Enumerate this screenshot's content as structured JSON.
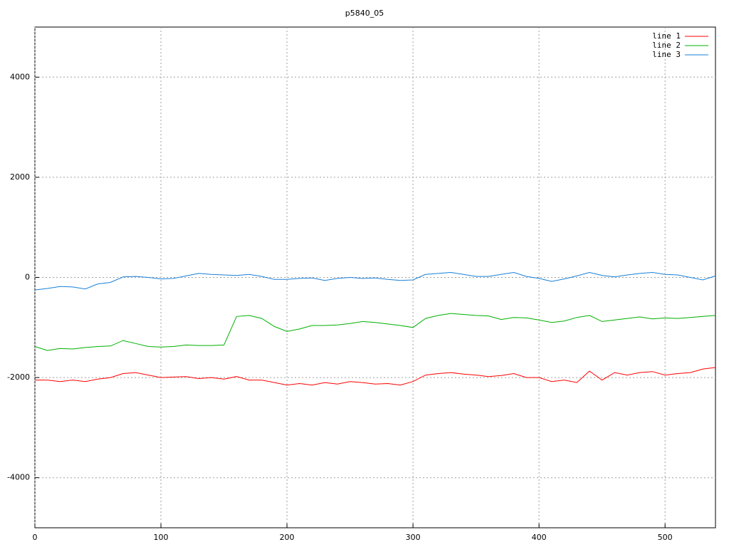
{
  "chart_data": {
    "type": "line",
    "title": "p5840_05",
    "x": [
      0,
      10,
      20,
      30,
      40,
      50,
      60,
      70,
      80,
      90,
      100,
      110,
      120,
      130,
      140,
      150,
      160,
      170,
      180,
      190,
      200,
      210,
      220,
      230,
      240,
      250,
      260,
      270,
      280,
      290,
      300,
      310,
      320,
      330,
      340,
      350,
      360,
      370,
      380,
      390,
      400,
      410,
      420,
      430,
      440,
      450,
      460,
      470,
      480,
      490,
      500,
      510,
      520,
      530,
      540
    ],
    "series": [
      {
        "name": "line 1",
        "color": "#ff0000",
        "values": [
          -2050,
          -2050,
          -2080,
          -2050,
          -2080,
          -2030,
          -2000,
          -1920,
          -1900,
          -1950,
          -2000,
          -1990,
          -1980,
          -2020,
          -2000,
          -2030,
          -1980,
          -2050,
          -2050,
          -2100,
          -2150,
          -2120,
          -2150,
          -2100,
          -2130,
          -2080,
          -2100,
          -2130,
          -2120,
          -2150,
          -2080,
          -1950,
          -1920,
          -1900,
          -1930,
          -1950,
          -1980,
          -1960,
          -1920,
          -2000,
          -2000,
          -2080,
          -2050,
          -2100,
          -1870,
          -2050,
          -1900,
          -1950,
          -1900,
          -1880,
          -1950,
          -1920,
          -1900,
          -1830,
          -1800
        ]
      },
      {
        "name": "line 2",
        "color": "#00b000",
        "values": [
          -1380,
          -1460,
          -1420,
          -1430,
          -1400,
          -1380,
          -1370,
          -1260,
          -1320,
          -1380,
          -1390,
          -1380,
          -1350,
          -1360,
          -1360,
          -1350,
          -780,
          -760,
          -820,
          -980,
          -1080,
          -1030,
          -960,
          -960,
          -950,
          -920,
          -880,
          -900,
          -930,
          -960,
          -1000,
          -820,
          -760,
          -720,
          -740,
          -760,
          -770,
          -840,
          -800,
          -810,
          -850,
          -900,
          -870,
          -800,
          -760,
          -880,
          -850,
          -820,
          -790,
          -830,
          -810,
          -820,
          -800,
          -780,
          -760
        ]
      },
      {
        "name": "line 3",
        "color": "#1a80d8",
        "values": [
          -250,
          -220,
          -180,
          -190,
          -230,
          -130,
          -100,
          10,
          20,
          0,
          -30,
          -20,
          30,
          80,
          60,
          50,
          40,
          60,
          20,
          -40,
          -40,
          -20,
          -10,
          -60,
          -20,
          0,
          -20,
          -10,
          -40,
          -60,
          -50,
          60,
          80,
          100,
          60,
          20,
          20,
          60,
          100,
          20,
          -20,
          -80,
          -30,
          30,
          100,
          40,
          10,
          50,
          80,
          100,
          60,
          50,
          0,
          -50,
          30
        ]
      }
    ],
    "xlim": [
      0,
      540
    ],
    "ylim": [
      -5000,
      5000
    ],
    "xticks": [
      0,
      100,
      200,
      300,
      400,
      500
    ],
    "yticks": [
      -4000,
      -2000,
      0,
      2000,
      4000
    ],
    "grid": true,
    "legend": "top-right"
  }
}
